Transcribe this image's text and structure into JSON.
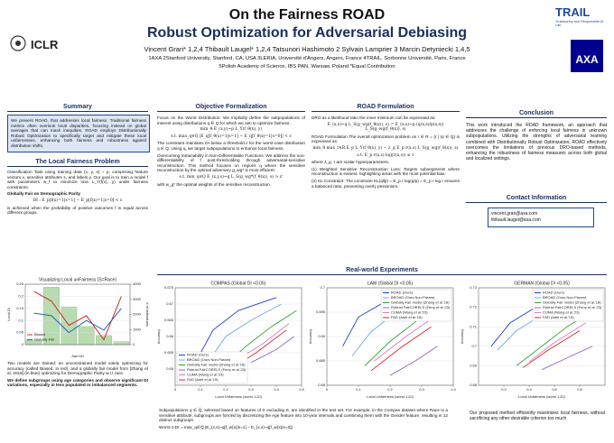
{
  "header": {
    "title": "On the Fairness ROAD",
    "subtitle": "Robust Optimization for Adversarial Debiasing",
    "authors": "Vincent Grari* 1,2,4   Thibault Laugel* 1,2,4   Tatsunori Hashimoto 2   Sylvain Lamprier 3   Marcin Detyniecki 1,4,5",
    "affiliations_1": "1AXA   2Stanford University, Stanford, CA, USA   3LERIA, Université d'Angers, Angers, France   4TRAIL, Sorbonne Université, Paris, France",
    "affiliations_2": "5Polish Academy of Science, IBS PAN, Warsaw, Poland   *Equal Contribution",
    "logo_left": "ICLR",
    "logo_trail": "TRAIL",
    "logo_trail_tagline": "Trustworthy and Responsible AI Lab",
    "logo_axa": "AXA"
  },
  "summary": {
    "heading": "Summary",
    "text": "We present ROAD, that addresses local fairness. Traditional fairness metrics often overlook local disparities, focusing instead on global averages that can mask inequities. ROAD employs Distributionally Robust Optimization to specifically target and mitigate these local unfairnesses, enhancing both fairness and robustness against distribution shifts."
  },
  "local_fairness": {
    "heading": "The Local Fairness Problem",
    "p1": "Classification Task using training data (x, y, s) ~ p, comprising feature vectors x, sensitive attributes s, and labels y. Our goal is to train a model f with parameters w_f to minimize loss L_Y(f(x), y) under fairness constraints.",
    "p2": "Globally Fair on Demographic Parity",
    "formula": "DI : E_p[f(x)=1|s=1] − E_p[f(x)=1|s=0] < ε",
    "p3": "is achieved when the probability of positive outcomes f is equal across different groups.",
    "p4": "Two models are trained: an unconstrained model solely optimizing for accuracy (called Biased, in red), and a globally fair model from [Zhang et al. 2018] (in blue) optimizing for Demographic Parity w.r.t race.",
    "p5": "We define subgroups using age categories and observe significant DI variations, especially in less populated or imbalanced segments."
  },
  "objective": {
    "heading": "Objective Formalization",
    "p1": "Focus on the Worst Distribution: We implicitly define the subpopulations of interest using distributions q ∈ Q for which we aim to optimize fairness:",
    "f1": "min_θ E_(x,y)~p L_Y(f_θ(x), y)",
    "f2": "s.t. max_q∈Q |E_q[f_θ(x)=1|s=1] − E_q[f_θ(x)=1|s=0]| < ε",
    "p2": "The constraint maintains DI below a threshold ε for the worst-case distribution q ∈ Q. Using q, we target subpopulations to enhance local fairness.",
    "p3": "Overcoming Intractability in Non-Differentiable Functions: We address the non-differentiability of f post-thresholding through adversarial-sensitive reconstruction. This method focuses on regions q where the sensitive reconstruction by the optimal adversary g_wg* is most efficient:",
    "f3": "s.t. min_q∈Q E_(x,y,s)~q L_S(g_wg*(f_θ(x)), s) > ε'",
    "p4": "with w_g* the optimal weights of the sensitive reconstruction."
  },
  "road": {
    "heading": "ROAD Formulation",
    "p1": "DRO as a likelihood ratio the inner minimum can be expressed as:",
    "f1": "E_(x,s)~q L_S(g_wg(f_θ(x)), s) = E_(x,s)~p (q(x,s)/p(x,s)) L_S(g_wg(f_θ(x)), s)",
    "p2": "ROAD Formulation The overall optimization problem on r ∈ R = {r | rp ∈ Q} is expressed as:",
    "f2": "min_θ max_r∈R E_p L_Y(f_θ(x), y) − λ_g E_p r(x,s) L_S(g_wg(f_θ(x)), s)",
    "f3": "s.t. E_p r(x,s) log(r(x,s)) ≤ τ",
    "p3": "where λ_g, τ are scalar hyperparameters.",
    "p4": "(1) Weighted Sensitive Reconstruction Loss: Targets subsegments where reconstruction is easiest, highlighting areas with the most potential bias.",
    "p5": "(2) KL Constraint: The constraint KL(q‖p) = E_p r log(q/p) = E_p r log r ensures a balanced ratio, preventing overly pessimism."
  },
  "conclusion": {
    "heading": "Conclusion",
    "text": "This work introduced the ROAD framework, an approach that addresses the challenge of enforcing local fairness in unknown subpopulations. Utilizing the strengths of adversarial learning combined with Distributionally Robust Optimization, ROAD effectively overcomes the limitations of previous DRO-based methods, enhancing the robustness of fairness measures across both global and localized settings."
  },
  "contact": {
    "heading": "Contact Information",
    "emails": [
      "vincent.grari@axa.com",
      "thibault.laugel@axa.com"
    ]
  },
  "experiments": {
    "heading": "Real-world Experiments",
    "b1": "Subpopulations q ∈ Q̂, selected based on features of X excluding S, are identified in the test set. For example, in the Compas dataset where Race is a sensitive attribute, subgroups are formed by discretizing the Age feature into 10-year intervals and combining them with the Gender feature, resulting in 12 distinct subgroups.",
    "b2": "Worst-1-DI = max_q∈Q̂ |E_(x,s)~q[f_w(x)|s=1] − E_(x,s)~q[f_w(x)|s=0]|.",
    "b3": "Our proposed method efficiently maximizes local fairness, without sacrificing any other desirable criterion too much"
  },
  "chart_data": [
    {
      "type": "bar",
      "title": "Visualizing Local unFairness (S=Race)",
      "x_label": "Age bin",
      "y_label": "Local DI",
      "y2_label": "# of individuals",
      "categories": [
        null,
        null,
        null,
        null,
        null,
        null
      ],
      "bars": {
        "color": "#b7dcb0",
        "axis": "y2",
        "values": [
          300,
          3800,
          2500,
          1200,
          600,
          200
        ]
      },
      "series": [
        {
          "name": "Biased",
          "color": "#d62728",
          "values": [
            0.22,
            0.18,
            0.08,
            0.12,
            0.02,
            0.2
          ]
        },
        {
          "name": "Globally Fair",
          "color": "#1f5fbf",
          "values": [
            0.13,
            0.12,
            0.05,
            0.1,
            0.06,
            0.15
          ]
        }
      ],
      "ylim": [
        0,
        0.25
      ],
      "yticks": [
        0,
        0.05,
        0.1,
        0.15,
        0.2,
        0.25
      ],
      "y2lim": [
        0,
        4000
      ],
      "y2ticks": [
        0,
        1000,
        2000,
        3000,
        4000
      ],
      "legend": "lower left"
    },
    {
      "type": "line",
      "title": "COMPAS (Global DI <0.05)",
      "x_label": "Local Unfairness (worst 1-DI)",
      "y_label": "Accuracy",
      "xlim": [
        0,
        0.5
      ],
      "xticks": [
        0,
        0.1,
        0.2,
        0.3,
        0.4,
        0.5
      ],
      "ylim": [
        0.645,
        0.675
      ],
      "yticks": [
        0.65,
        0.655,
        0.66,
        0.665,
        0.67,
        0.675
      ],
      "legend": "lower left",
      "series": [
        {
          "name": "ROAD (Ours)",
          "color": "#1f3fbf",
          "x": [
            0.08,
            0.15,
            0.25,
            0.4
          ],
          "values": [
            0.652,
            0.662,
            0.668,
            0.672
          ]
        },
        {
          "name": "BROAD (Ours Non-Param)",
          "color": "#6fa8dc",
          "x": [
            0.12,
            0.2,
            0.3,
            0.42
          ],
          "values": [
            0.651,
            0.66,
            0.665,
            0.67
          ]
        },
        {
          "name": "Globally Fair model (Zhang et al.'18)",
          "color": "#2ca02c",
          "x": [
            0.18,
            0.28,
            0.38,
            0.48
          ],
          "values": [
            0.65,
            0.657,
            0.663,
            0.668
          ]
        },
        {
          "name": "Robust FairCORELS (Ferry et al.'23)",
          "color": "#9467bd",
          "x": [
            0.3,
            0.4,
            0.47
          ],
          "values": [
            0.652,
            0.656,
            0.66
          ]
        },
        {
          "name": "CUMA (Wang et al.'23)",
          "color": "#e377c2",
          "x": [
            0.25,
            0.35,
            0.45
          ],
          "values": [
            0.653,
            0.658,
            0.664
          ]
        },
        {
          "name": "FAD (Adel et al.'19)",
          "color": "#d62728",
          "x": [
            0.2,
            0.32,
            0.44
          ],
          "values": [
            0.649,
            0.655,
            0.662
          ]
        }
      ]
    },
    {
      "type": "line",
      "title": "LAW (Global DI <0.05)",
      "x_label": "Local Unfairness (worst 1-DI)",
      "y_label": "Accuracy",
      "xlim": [
        0,
        0.4
      ],
      "xticks": [
        0,
        0.1,
        0.2,
        0.3,
        0.4
      ],
      "ylim": [
        0.68,
        0.7
      ],
      "yticks": [
        0.68,
        0.685,
        0.69,
        0.695,
        0.7
      ],
      "legend": "upper right",
      "series": [
        {
          "name": "ROAD (Ours)",
          "color": "#1f3fbf",
          "x": [
            0.05,
            0.1,
            0.18,
            0.3
          ],
          "values": [
            0.688,
            0.694,
            0.697,
            0.699
          ]
        },
        {
          "name": "BROAD (Ours Non-Param)",
          "color": "#6fa8dc",
          "x": [
            0.08,
            0.14,
            0.22,
            0.32
          ],
          "values": [
            0.686,
            0.691,
            0.695,
            0.698
          ]
        },
        {
          "name": "Globally Fair model (Zhang et al.'18)",
          "color": "#2ca02c",
          "x": [
            0.12,
            0.2,
            0.28,
            0.36
          ],
          "values": [
            0.684,
            0.689,
            0.693,
            0.697
          ]
        },
        {
          "name": "Robust FairCORELS (Ferry et al.'23)",
          "color": "#9467bd",
          "x": [
            0.2,
            0.28,
            0.35
          ],
          "values": [
            0.682,
            0.685,
            0.688
          ]
        },
        {
          "name": "CUMA (Wang et al.'23)",
          "color": "#e377c2",
          "x": [
            0.15,
            0.25,
            0.34
          ],
          "values": [
            0.685,
            0.69,
            0.694
          ]
        },
        {
          "name": "FAD (Adel et al.'19)",
          "color": "#d62728",
          "x": [
            0.14,
            0.24,
            0.33
          ],
          "values": [
            0.683,
            0.688,
            0.692
          ]
        }
      ]
    },
    {
      "type": "line",
      "title": "GERMAN (Global DI <0.05)",
      "x_label": "Local Unfairness (worst 1-DI)",
      "y_label": "Accuracy",
      "xlim": [
        0,
        1
      ],
      "xticks": [
        0.2,
        0.4,
        0.6,
        0.8
      ],
      "ylim": [
        0.68,
        0.73
      ],
      "yticks": [
        0.68,
        0.69,
        0.7,
        0.71,
        0.72,
        0.73
      ],
      "legend": "upper right",
      "series": [
        {
          "name": "ROAD (Ours)",
          "color": "#1f3fbf",
          "x": [
            0.1,
            0.25,
            0.45,
            0.7
          ],
          "values": [
            0.7,
            0.712,
            0.72,
            0.726
          ]
        },
        {
          "name": "BROAD (Ours Non-Param)",
          "color": "#6fa8dc",
          "x": [
            0.15,
            0.3,
            0.5,
            0.75
          ],
          "values": [
            0.698,
            0.708,
            0.716,
            0.722
          ]
        },
        {
          "name": "Globally Fair model (Zhang et al.'18)",
          "color": "#2ca02c",
          "x": [
            0.3,
            0.5,
            0.7,
            0.9
          ],
          "values": [
            0.69,
            0.7,
            0.71,
            0.718
          ]
        },
        {
          "name": "Robust FairCORELS (Ferry et al.'23)",
          "color": "#9467bd",
          "x": [
            0.5,
            0.7,
            0.9
          ],
          "values": [
            0.688,
            0.694,
            0.7
          ]
        },
        {
          "name": "CUMA (Wang et al.'23)",
          "color": "#e377c2",
          "x": [
            0.4,
            0.6,
            0.85
          ],
          "values": [
            0.692,
            0.702,
            0.712
          ]
        },
        {
          "name": "FAD (Adel et al.'19)",
          "color": "#d62728",
          "x": [
            0.35,
            0.55,
            0.8
          ],
          "values": [
            0.689,
            0.698,
            0.708
          ]
        }
      ]
    }
  ]
}
